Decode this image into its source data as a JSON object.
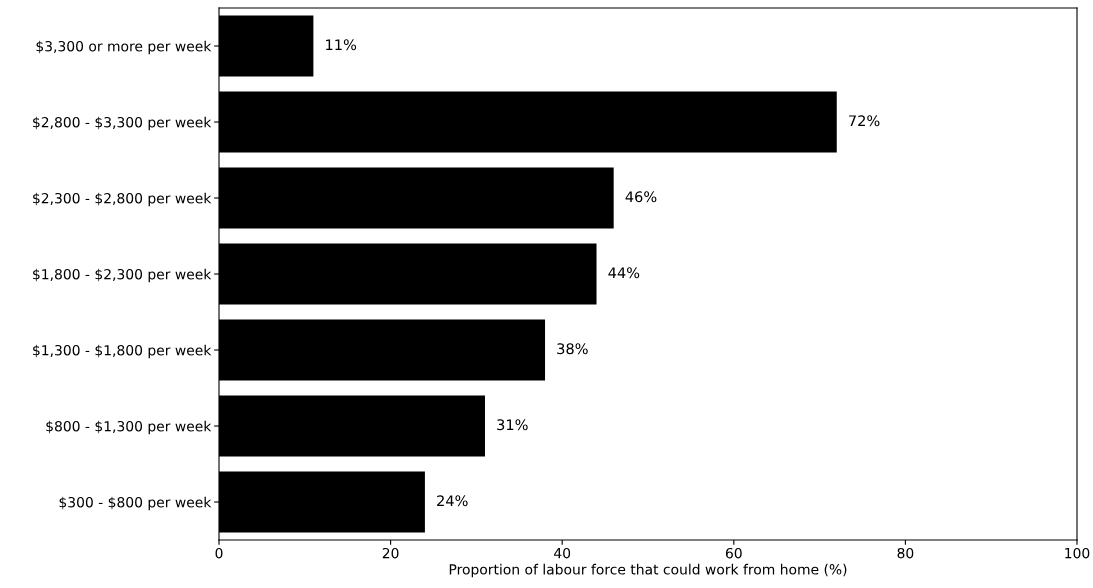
{
  "chart_data": {
    "type": "bar",
    "orientation": "horizontal",
    "categories": [
      "$3,300 or more per week",
      "$2,800 - $3,300 per week",
      "$2,300 - $2,800 per week",
      "$1,800 - $2,300 per week",
      "$1,300 - $1,800 per week",
      "$800 - $1,300 per week",
      "$300 - $800 per week"
    ],
    "values": [
      11,
      72,
      46,
      44,
      38,
      31,
      24
    ],
    "value_labels": [
      "11%",
      "72%",
      "46%",
      "44%",
      "38%",
      "31%",
      "24%"
    ],
    "color": "#000000",
    "xlabel": "Proportion of labour force that could work from home (%)",
    "xlim": [
      0,
      100
    ],
    "xticks": [
      0,
      20,
      40,
      60,
      80,
      100
    ],
    "grid": false
  }
}
